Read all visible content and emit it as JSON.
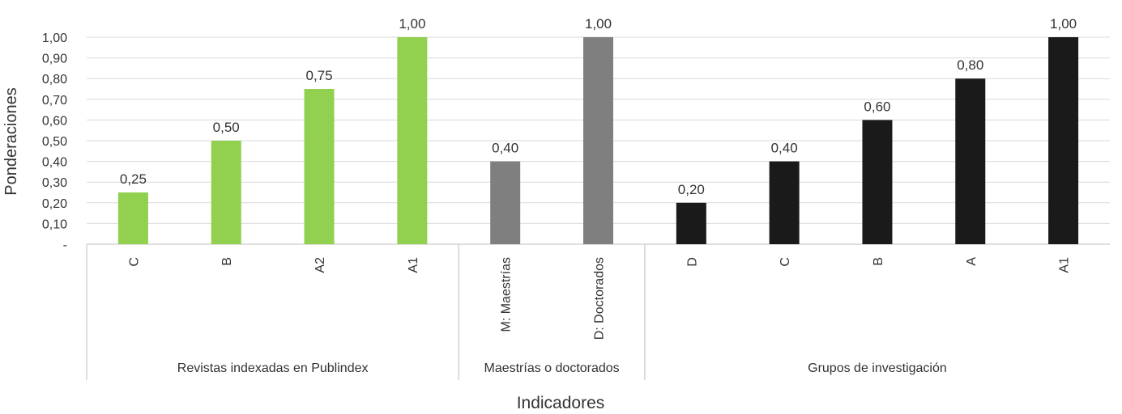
{
  "chart_data": {
    "type": "bar",
    "xlabel": "Indicadores",
    "ylabel": "Ponderaciones",
    "ylim": [
      0,
      1.0
    ],
    "y_ticks": [
      "-",
      "0,10",
      "0,20",
      "0,30",
      "0,40",
      "0,50",
      "0,60",
      "0,70",
      "0,80",
      "0,90",
      "1,00"
    ],
    "grid": true,
    "groups": [
      {
        "name": "Revistas indexadas en Publindex",
        "color": "#92d050",
        "categories": [
          "C",
          "B",
          "A2",
          "A1"
        ],
        "values": [
          0.25,
          0.5,
          0.75,
          1.0
        ],
        "labels": [
          "0,25",
          "0,50",
          "0,75",
          "1,00"
        ]
      },
      {
        "name": "Maestrías o doctorados",
        "color": "#7f7f7f",
        "categories": [
          "M: Maestrías",
          "D: Doctorados"
        ],
        "values": [
          0.4,
          1.0
        ],
        "labels": [
          "0,40",
          "1,00"
        ]
      },
      {
        "name": "Grupos de investigación",
        "color": "#1a1a1a",
        "categories": [
          "D",
          "C",
          "B",
          "A",
          "A1"
        ],
        "values": [
          0.2,
          0.4,
          0.6,
          0.8,
          1.0
        ],
        "labels": [
          "0,20",
          "0,40",
          "0,60",
          "0,80",
          "1,00"
        ]
      }
    ]
  }
}
